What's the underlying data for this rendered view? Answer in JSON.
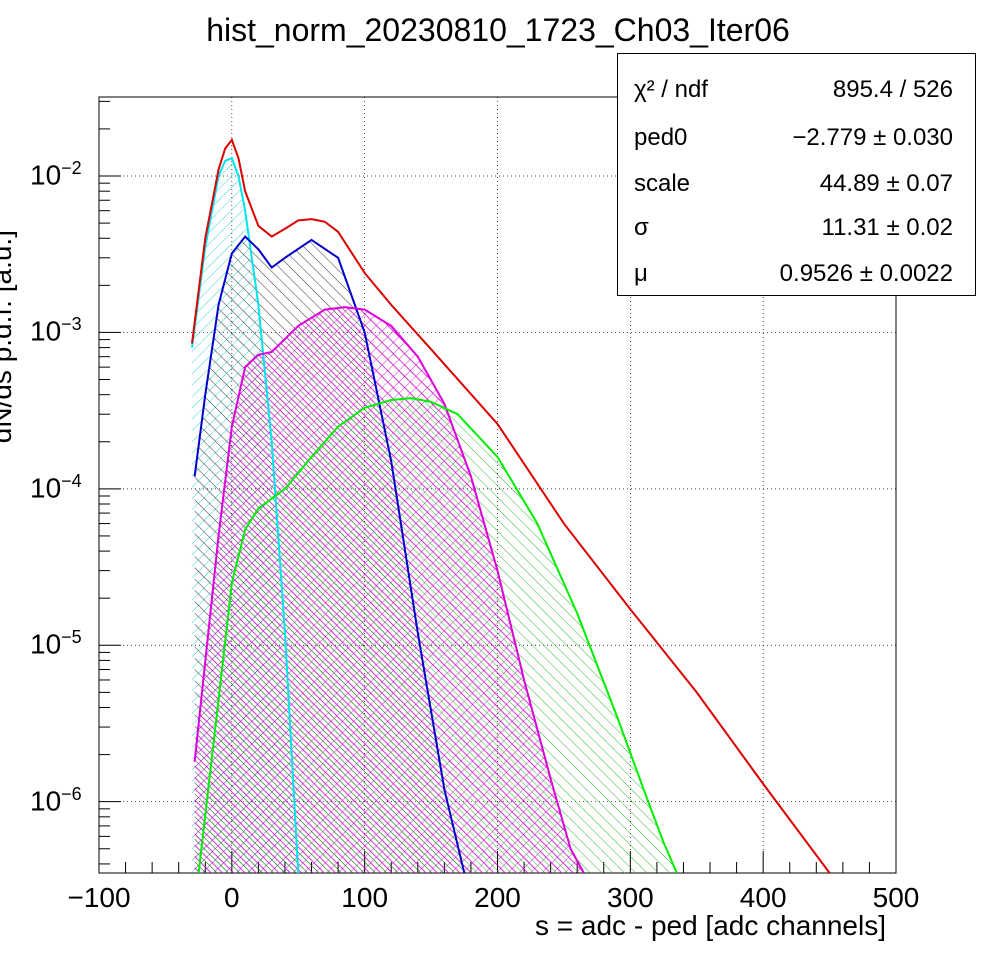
{
  "chart_data": {
    "type": "line",
    "title": "hist_norm_20230810_1723_Ch03_Iter06",
    "xlabel": "s = adc - ped [adc channels]",
    "ylabel": "dN/ds p.d.f. [a.u.]",
    "xlim": [
      -100,
      500
    ],
    "ylim": [
      3.5e-07,
      0.032
    ],
    "yscale": "log",
    "grid": true,
    "x_ticks": [
      "−100",
      "0",
      "100",
      "200",
      "300",
      "400",
      "500"
    ],
    "y_ticks": [
      {
        "base": "10",
        "exp": "−2",
        "value": 0.01
      },
      {
        "base": "10",
        "exp": "−3",
        "value": 0.001
      },
      {
        "base": "10",
        "exp": "−4",
        "value": 0.0001
      },
      {
        "base": "10",
        "exp": "−5",
        "value": 1e-05
      },
      {
        "base": "10",
        "exp": "−6",
        "value": 1e-06
      }
    ],
    "stats": [
      {
        "label": "χ² / ndf",
        "value": "895.4 / 526"
      },
      {
        "label": "ped0",
        "value": "−2.779 ± 0.030"
      },
      {
        "label": "scale",
        "value": "44.89 ± 0.07"
      },
      {
        "label": "σ",
        "value": "11.31 ± 0.02"
      },
      {
        "label": "μ",
        "value": "0.9526 ± 0.0022"
      }
    ],
    "series": [
      {
        "color": "#00e5ee",
        "hatch": "cyan-diag",
        "x": [
          -30,
          -20,
          -10,
          -5,
          0,
          5,
          10,
          20,
          30,
          40,
          50
        ],
        "y": [
          0.0008,
          0.0035,
          0.01,
          0.0125,
          0.013,
          0.01,
          0.006,
          0.0015,
          0.0002,
          1.2e-05,
          3.5e-07
        ]
      },
      {
        "color": "#0000cc",
        "hatch": "black-diag",
        "x": [
          -28,
          -20,
          -10,
          0,
          10,
          20,
          30,
          40,
          60,
          80,
          100,
          120,
          140,
          160,
          175
        ],
        "y": [
          0.00012,
          0.0004,
          0.0015,
          0.0032,
          0.0041,
          0.0034,
          0.0026,
          0.003,
          0.0039,
          0.003,
          0.001,
          0.00015,
          1.2e-05,
          1.2e-06,
          3.5e-07
        ]
      },
      {
        "color": "#dd00dd",
        "hatch": "magenta-cross",
        "x": [
          -28,
          -10,
          0,
          10,
          20,
          30,
          50,
          70,
          85,
          100,
          120,
          140,
          160,
          180,
          200,
          220,
          240,
          255,
          265
        ],
        "y": [
          1.8e-06,
          5e-05,
          0.00025,
          0.0006,
          0.00072,
          0.00075,
          0.0011,
          0.0014,
          0.00145,
          0.0014,
          0.0011,
          0.0007,
          0.00035,
          0.00012,
          3e-05,
          6e-06,
          1.4e-06,
          5e-07,
          3.5e-07
        ]
      },
      {
        "color": "#00ee00",
        "hatch": "green-diag",
        "x": [
          -25,
          -10,
          0,
          10,
          20,
          40,
          60,
          80,
          100,
          120,
          135,
          150,
          170,
          200,
          230,
          260,
          290,
          310,
          325,
          335
        ],
        "y": [
          3.5e-07,
          4.5e-06,
          2.5e-05,
          5.5e-05,
          7.5e-05,
          0.0001,
          0.00016,
          0.00025,
          0.00033,
          0.00037,
          0.00038,
          0.00036,
          0.0003,
          0.00016,
          6e-05,
          1.6e-05,
          3.5e-06,
          1.2e-06,
          5.5e-07,
          3.5e-07
        ]
      },
      {
        "color": "#dd0000",
        "hatch": "none",
        "x": [
          -30,
          -20,
          -10,
          -5,
          0,
          5,
          10,
          20,
          30,
          40,
          50,
          60,
          70,
          80,
          100,
          120,
          150,
          200,
          250,
          300,
          350,
          400,
          450
        ],
        "y": [
          0.00085,
          0.004,
          0.011,
          0.015,
          0.017,
          0.013,
          0.008,
          0.0048,
          0.0041,
          0.0046,
          0.0052,
          0.0053,
          0.0051,
          0.0044,
          0.0024,
          0.0015,
          0.00078,
          0.00026,
          6e-05,
          1.7e-05,
          5e-06,
          1.3e-06,
          3.5e-07
        ]
      }
    ],
    "data_points_note": ""
  }
}
